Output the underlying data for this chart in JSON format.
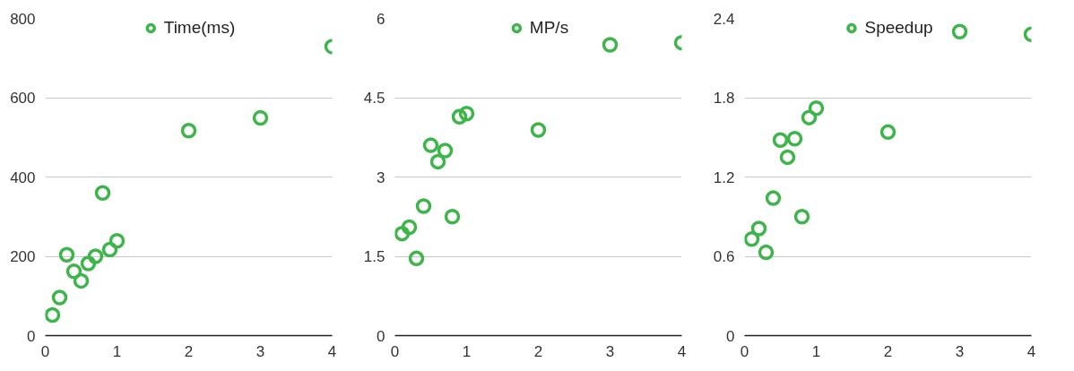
{
  "chart_data": [
    {
      "type": "scatter",
      "x": [
        0.1,
        0.2,
        0.3,
        0.4,
        0.5,
        0.6,
        0.7,
        0.8,
        0.9,
        1,
        2,
        3,
        4
      ],
      "series": [
        {
          "name": "Time(ms)",
          "color": "#3db54a",
          "values": [
            52,
            96,
            204,
            162,
            138,
            182,
            200,
            360,
            217,
            239,
            517,
            549,
            729
          ]
        }
      ],
      "xlim": [
        0,
        4
      ],
      "xticks": [
        0,
        1,
        2,
        3,
        4
      ],
      "ylim": [
        0,
        800
      ],
      "yticks": [
        0,
        200,
        400,
        600,
        800
      ],
      "grid": "y",
      "legend": "top",
      "marker": "circle"
    },
    {
      "type": "scatter",
      "x": [
        0.1,
        0.2,
        0.3,
        0.4,
        0.5,
        0.6,
        0.7,
        0.8,
        0.9,
        1,
        2,
        3,
        4
      ],
      "series": [
        {
          "name": "MP/s",
          "color": "#3db54a",
          "values": [
            1.93,
            2.05,
            1.46,
            2.45,
            3.6,
            3.29,
            3.5,
            2.25,
            4.14,
            4.2,
            3.89,
            5.5,
            5.54
          ]
        }
      ],
      "xlim": [
        0,
        4
      ],
      "xticks": [
        0,
        1,
        2,
        3,
        4
      ],
      "ylim": [
        0,
        6
      ],
      "yticks": [
        0,
        1.5,
        3,
        4.5,
        6
      ],
      "grid": "y",
      "legend": "top",
      "marker": "circle"
    },
    {
      "type": "scatter",
      "x": [
        0.1,
        0.2,
        0.3,
        0.4,
        0.5,
        0.6,
        0.7,
        0.8,
        0.9,
        1,
        2,
        3,
        4
      ],
      "series": [
        {
          "name": "Speedup",
          "color": "#3db54a",
          "values": [
            0.73,
            0.81,
            0.63,
            1.04,
            1.48,
            1.35,
            1.49,
            0.9,
            1.65,
            1.72,
            1.54,
            2.3,
            2.28
          ]
        }
      ],
      "xlim": [
        0,
        4
      ],
      "xticks": [
        0,
        1,
        2,
        3,
        4
      ],
      "ylim": [
        0,
        2.4
      ],
      "yticks": [
        0,
        0.6,
        1.2,
        1.8,
        2.4
      ],
      "grid": "y",
      "legend": "top",
      "marker": "circle"
    }
  ]
}
